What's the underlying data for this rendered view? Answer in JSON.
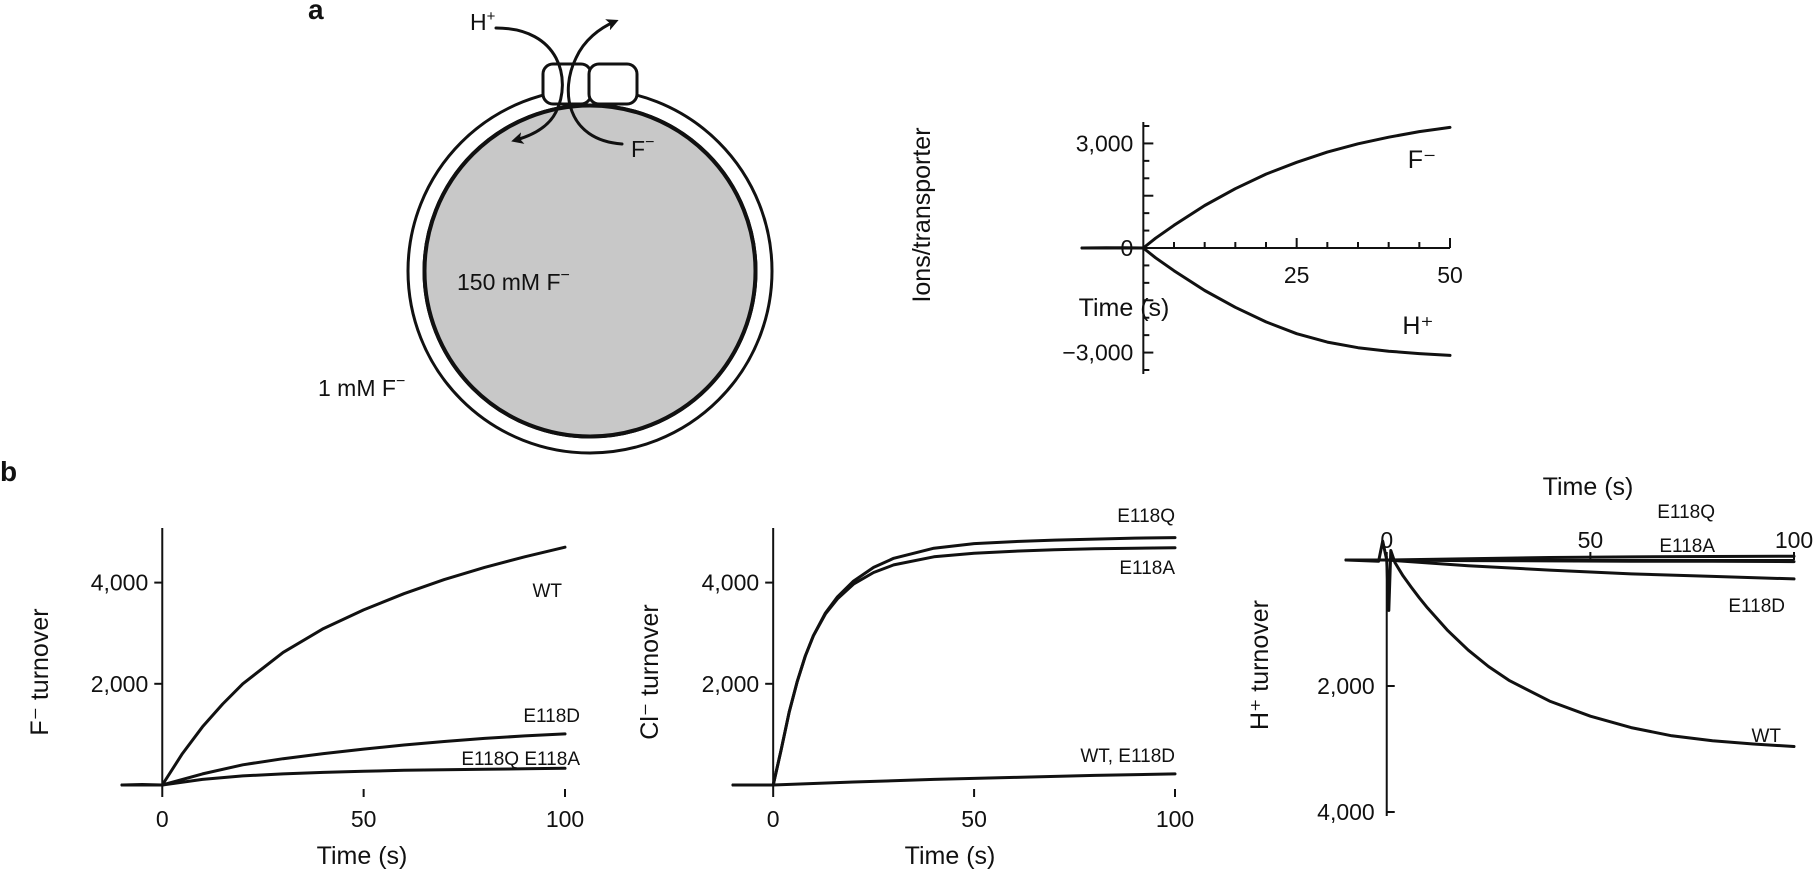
{
  "panels": {
    "a": "a",
    "b": "b"
  },
  "schematic": {
    "proton_label": "H",
    "proton_sup": "+",
    "fluoride_label": "F",
    "fluoride_sup": "−",
    "inside_label": "150 mM F",
    "inside_sup": "−",
    "outside_label": "1 mM F",
    "outside_sup": "−",
    "colors": {
      "lumen": "#c8c8c8",
      "membrane": "#ffffff",
      "stroke": "#111111"
    }
  },
  "chart_data": [
    {
      "id": "a_right",
      "type": "line",
      "ylabel": "Ions/transporter",
      "xlabel": "Time (s)",
      "xlim": [
        -10,
        50
      ],
      "ylim": [
        -3500,
        3500
      ],
      "x_ticks": [
        25,
        50
      ],
      "y_ticks": [
        3000,
        0,
        -3000
      ],
      "x_tick_labels": [
        "25",
        "50"
      ],
      "y_tick_labels": [
        "3,000",
        "0",
        "−3,000"
      ],
      "series": [
        {
          "name": "F⁻",
          "x": [
            -10,
            -6,
            -3,
            0,
            2,
            5,
            10,
            15,
            20,
            25,
            30,
            35,
            40,
            45,
            50
          ],
          "y": [
            0,
            0,
            10,
            0,
            280,
            650,
            1220,
            1700,
            2120,
            2460,
            2750,
            2990,
            3180,
            3340,
            3460
          ]
        },
        {
          "name": "H⁺",
          "x": [
            -10,
            -6,
            -3,
            0,
            2,
            5,
            10,
            15,
            20,
            25,
            30,
            35,
            40,
            45,
            50
          ],
          "y": [
            0,
            10,
            0,
            0,
            -280,
            -650,
            -1220,
            -1700,
            -2120,
            -2460,
            -2700,
            -2860,
            -2960,
            -3030,
            -3080
          ]
        }
      ]
    },
    {
      "id": "b_f",
      "type": "line",
      "ylabel": "F⁻ turnover",
      "xlabel": "Time (s)",
      "xlim": [
        -10,
        100
      ],
      "ylim": [
        0,
        5000
      ],
      "x_ticks": [
        0,
        50,
        100
      ],
      "y_ticks": [
        2000,
        4000
      ],
      "x_tick_labels": [
        "0",
        "50",
        "100"
      ],
      "y_tick_labels": [
        "2,000",
        "4,000"
      ],
      "series": [
        {
          "name": "WT",
          "x": [
            -10,
            -5,
            0,
            5,
            10,
            15,
            20,
            30,
            40,
            50,
            60,
            70,
            80,
            90,
            100
          ],
          "y": [
            0,
            10,
            0,
            620,
            1150,
            1600,
            2000,
            2620,
            3090,
            3460,
            3780,
            4060,
            4300,
            4510,
            4700
          ]
        },
        {
          "name": "E118D",
          "x": [
            -10,
            0,
            10,
            20,
            30,
            40,
            50,
            60,
            70,
            80,
            90,
            100
          ],
          "y": [
            0,
            0,
            220,
            400,
            520,
            620,
            710,
            790,
            860,
            920,
            970,
            1010
          ]
        },
        {
          "name": "E118Q E118A",
          "x": [
            -10,
            0,
            10,
            20,
            30,
            40,
            50,
            60,
            70,
            80,
            90,
            100
          ],
          "y": [
            0,
            0,
            110,
            180,
            220,
            250,
            270,
            290,
            300,
            310,
            320,
            330
          ]
        }
      ]
    },
    {
      "id": "b_cl",
      "type": "line",
      "ylabel": "Cl⁻ turnover",
      "xlabel": "Time (s)",
      "xlim": [
        -10,
        100
      ],
      "ylim": [
        0,
        5000
      ],
      "x_ticks": [
        0,
        50,
        100
      ],
      "y_ticks": [
        2000,
        4000
      ],
      "x_tick_labels": [
        "0",
        "50",
        "100"
      ],
      "y_tick_labels": [
        "2,000",
        "4,000"
      ],
      "series": [
        {
          "name": "E118Q",
          "x": [
            -10,
            0,
            2,
            4,
            6,
            8,
            10,
            13,
            16,
            20,
            25,
            30,
            40,
            50,
            60,
            70,
            80,
            90,
            100
          ],
          "y": [
            0,
            0,
            700,
            1450,
            2050,
            2550,
            2950,
            3400,
            3720,
            4030,
            4300,
            4480,
            4680,
            4770,
            4810,
            4840,
            4860,
            4880,
            4890
          ]
        },
        {
          "name": "E118A",
          "x": [
            -10,
            0,
            2,
            4,
            6,
            8,
            10,
            13,
            16,
            20,
            25,
            30,
            40,
            50,
            60,
            70,
            80,
            90,
            100
          ],
          "y": [
            0,
            0,
            700,
            1450,
            2050,
            2550,
            2950,
            3380,
            3680,
            3970,
            4200,
            4350,
            4510,
            4580,
            4620,
            4650,
            4670,
            4680,
            4690
          ]
        },
        {
          "name": "WT, E118D",
          "x": [
            -10,
            0,
            20,
            40,
            60,
            80,
            100
          ],
          "y": [
            0,
            0,
            60,
            110,
            150,
            190,
            220
          ]
        }
      ]
    },
    {
      "id": "b_h",
      "type": "line",
      "ylabel": "H⁺ turnover",
      "xlabel": "Time (s)",
      "xlim": [
        -10,
        100
      ],
      "ylim": [
        4000,
        0
      ],
      "x_ticks": [
        0,
        50,
        100
      ],
      "y_ticks": [
        2000,
        4000
      ],
      "x_tick_labels": [
        "0",
        "50",
        "100"
      ],
      "y_tick_labels": [
        "2,000",
        "4,000"
      ],
      "series": [
        {
          "name": "WT",
          "x": [
            -10,
            -2,
            -1,
            0,
            0.5,
            1,
            2,
            4,
            6,
            8,
            10,
            15,
            20,
            25,
            30,
            40,
            50,
            60,
            70,
            80,
            90,
            100
          ],
          "y": [
            0,
            20,
            -300,
            0,
            800,
            -150,
            40,
            250,
            430,
            600,
            760,
            1120,
            1430,
            1690,
            1910,
            2240,
            2480,
            2660,
            2790,
            2870,
            2920,
            2960
          ]
        },
        {
          "name": "E118D",
          "x": [
            -10,
            0,
            20,
            40,
            60,
            80,
            100
          ],
          "y": [
            0,
            0,
            90,
            160,
            220,
            260,
            300
          ]
        },
        {
          "name": "E118Q",
          "x": [
            -10,
            0,
            20,
            40,
            60,
            80,
            100
          ],
          "y": [
            0,
            0,
            -20,
            -40,
            -50,
            -55,
            -60
          ]
        },
        {
          "name": "E118A",
          "x": [
            -10,
            0,
            20,
            40,
            60,
            80,
            100
          ],
          "y": [
            0,
            0,
            10,
            15,
            20,
            20,
            25
          ]
        }
      ]
    }
  ]
}
